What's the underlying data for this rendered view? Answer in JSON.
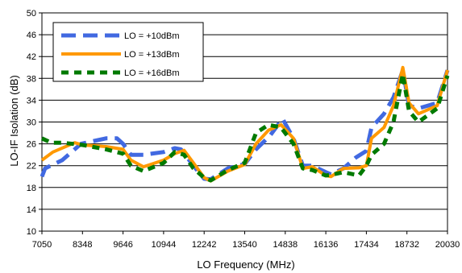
{
  "chart_data": {
    "type": "line",
    "title": "",
    "xlabel": "LO Frequency (MHz)",
    "ylabel": "LO-IF Isolation (dB)",
    "xlim": [
      7050,
      20030
    ],
    "ylim": [
      10,
      50
    ],
    "x_ticks": [
      "7050",
      "8348",
      "9646",
      "10944",
      "12242",
      "13540",
      "14838",
      "16136",
      "17434",
      "18732",
      "20030"
    ],
    "y_ticks": [
      "10",
      "14",
      "18",
      "22",
      "26",
      "30",
      "34",
      "38",
      "42",
      "46",
      "50"
    ],
    "grid": "horizontal",
    "legend_position": "top-left",
    "series": [
      {
        "name": "LO = +10dBm",
        "color": "#4169e1",
        "style": "long-dash",
        "points": [
          [
            7050,
            20
          ],
          [
            7150,
            21.5
          ],
          [
            7700,
            23
          ],
          [
            8300,
            26
          ],
          [
            9100,
            27
          ],
          [
            9450,
            27
          ],
          [
            9646,
            26
          ],
          [
            9900,
            24
          ],
          [
            10300,
            24
          ],
          [
            10944,
            24.5
          ],
          [
            11300,
            25.2
          ],
          [
            11500,
            25
          ],
          [
            11900,
            22
          ],
          [
            12242,
            19.6
          ],
          [
            12450,
            19.5
          ],
          [
            13000,
            21.5
          ],
          [
            13540,
            22.3
          ],
          [
            13900,
            25
          ],
          [
            14350,
            27.5
          ],
          [
            14750,
            30.6
          ],
          [
            15100,
            27
          ],
          [
            15400,
            22
          ],
          [
            15700,
            22
          ],
          [
            16136,
            20.8
          ],
          [
            16300,
            20.4
          ],
          [
            16700,
            21.5
          ],
          [
            17100,
            23.5
          ],
          [
            17434,
            24.7
          ],
          [
            17600,
            29
          ],
          [
            18000,
            31.5
          ],
          [
            18300,
            34.5
          ],
          [
            18600,
            39.5
          ],
          [
            18800,
            33
          ],
          [
            19100,
            32.5
          ],
          [
            19700,
            33.5
          ],
          [
            20030,
            39.5
          ]
        ]
      },
      {
        "name": "LO = +13dBm",
        "color": "#ff9900",
        "style": "solid",
        "points": [
          [
            7050,
            23
          ],
          [
            7400,
            24.5
          ],
          [
            8100,
            26.2
          ],
          [
            8348,
            25.8
          ],
          [
            9100,
            25.5
          ],
          [
            9646,
            25
          ],
          [
            9900,
            23
          ],
          [
            10300,
            21.8
          ],
          [
            10944,
            23
          ],
          [
            11300,
            24.2
          ],
          [
            11600,
            24.8
          ],
          [
            11900,
            22.5
          ],
          [
            12242,
            19.8
          ],
          [
            12450,
            19.2
          ],
          [
            13000,
            21
          ],
          [
            13540,
            22.2
          ],
          [
            13900,
            26
          ],
          [
            14300,
            28.5
          ],
          [
            14700,
            29.5
          ],
          [
            15100,
            27
          ],
          [
            15400,
            21.5
          ],
          [
            15700,
            21.8
          ],
          [
            16136,
            20.2
          ],
          [
            16300,
            20
          ],
          [
            16700,
            21.5
          ],
          [
            17200,
            21.6
          ],
          [
            17434,
            22
          ],
          [
            17600,
            27
          ],
          [
            18000,
            29
          ],
          [
            18300,
            33
          ],
          [
            18600,
            40
          ],
          [
            18800,
            33.5
          ],
          [
            19100,
            31.5
          ],
          [
            19700,
            33
          ],
          [
            20030,
            39.5
          ]
        ]
      },
      {
        "name": "LO = +16dBm",
        "color": "#007a00",
        "style": "short-dash",
        "points": [
          [
            7050,
            27
          ],
          [
            7350,
            26.2
          ],
          [
            7700,
            26.2
          ],
          [
            8348,
            25.8
          ],
          [
            9100,
            25
          ],
          [
            9646,
            24.2
          ],
          [
            9900,
            22
          ],
          [
            10300,
            21
          ],
          [
            10944,
            22.5
          ],
          [
            11300,
            24.5
          ],
          [
            11600,
            24
          ],
          [
            11900,
            21.5
          ],
          [
            12242,
            19.8
          ],
          [
            12450,
            19.3
          ],
          [
            13000,
            21.2
          ],
          [
            13540,
            22.5
          ],
          [
            13900,
            28
          ],
          [
            14300,
            29.5
          ],
          [
            14700,
            29
          ],
          [
            15100,
            26
          ],
          [
            15400,
            21.5
          ],
          [
            15700,
            21.2
          ],
          [
            16136,
            20.2
          ],
          [
            16300,
            20.3
          ],
          [
            16700,
            20.8
          ],
          [
            17200,
            20.2
          ],
          [
            17434,
            22
          ],
          [
            17600,
            24
          ],
          [
            18000,
            26
          ],
          [
            18300,
            30
          ],
          [
            18600,
            38.8
          ],
          [
            18800,
            32
          ],
          [
            19100,
            30
          ],
          [
            19700,
            32.5
          ],
          [
            20030,
            38.5
          ]
        ]
      }
    ]
  }
}
